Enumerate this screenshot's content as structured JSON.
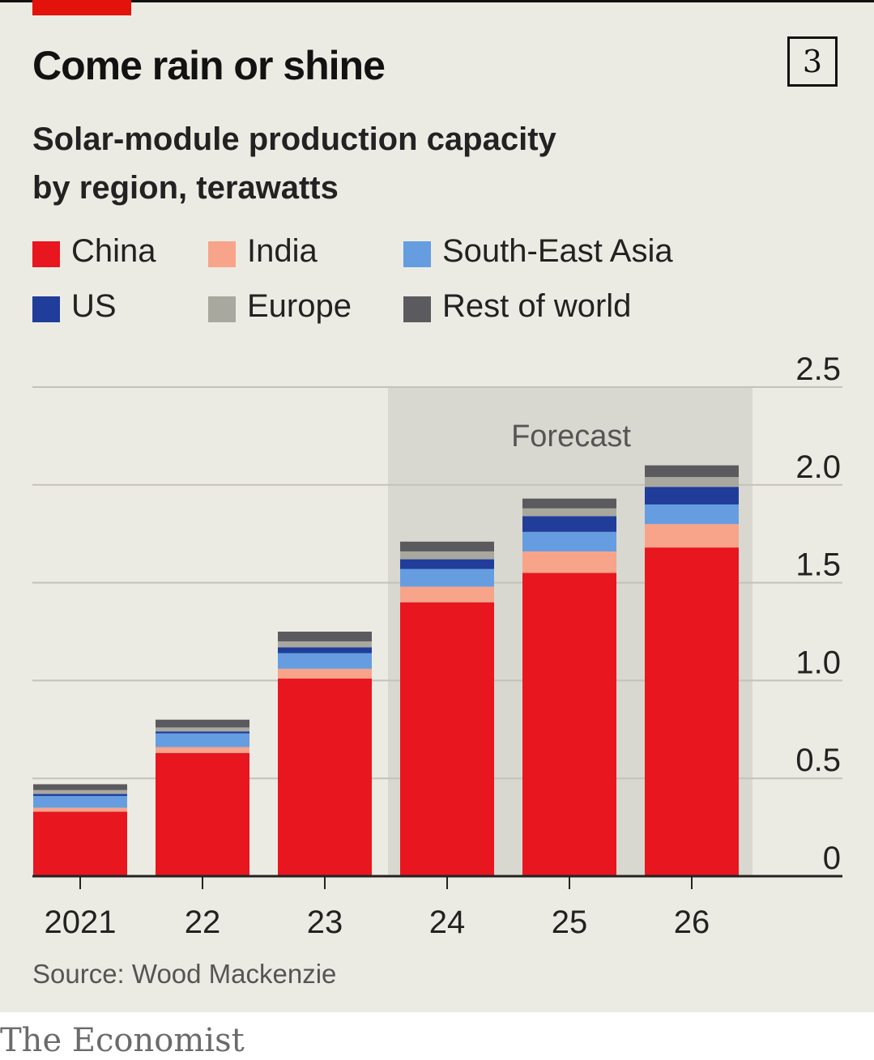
{
  "header": {
    "title": "Come rain or shine",
    "chart_number": "3"
  },
  "subtitle": {
    "line1": "Solar-module production capacity",
    "line2": "by region, terawatts"
  },
  "legend": [
    {
      "label": "China",
      "color": "#e8161f"
    },
    {
      "label": "India",
      "color": "#f7a48a"
    },
    {
      "label": "South-East Asia",
      "color": "#659de0"
    },
    {
      "label": "US",
      "color": "#1f3d99"
    },
    {
      "label": "Europe",
      "color": "#a8a89e"
    },
    {
      "label": "Rest of world",
      "color": "#5b5b5f"
    }
  ],
  "source": "Source: Wood Mackenzie",
  "brand": "The Economist",
  "chart_data": {
    "type": "bar",
    "stacked": true,
    "categories": [
      "2021",
      "22",
      "23",
      "24",
      "25",
      "26"
    ],
    "series": [
      {
        "name": "China",
        "color": "#e8161f",
        "values": [
          0.33,
          0.63,
          1.01,
          1.4,
          1.55,
          1.68
        ]
      },
      {
        "name": "India",
        "color": "#f7a48a",
        "values": [
          0.02,
          0.03,
          0.05,
          0.08,
          0.11,
          0.12
        ]
      },
      {
        "name": "South-East Asia",
        "color": "#659de0",
        "values": [
          0.06,
          0.07,
          0.08,
          0.09,
          0.1,
          0.1
        ]
      },
      {
        "name": "US",
        "color": "#1f3d99",
        "values": [
          0.01,
          0.01,
          0.03,
          0.05,
          0.08,
          0.09
        ]
      },
      {
        "name": "Europe",
        "color": "#a8a89e",
        "values": [
          0.02,
          0.02,
          0.03,
          0.04,
          0.04,
          0.05
        ]
      },
      {
        "name": "Rest of world",
        "color": "#5b5b5f",
        "values": [
          0.03,
          0.04,
          0.05,
          0.05,
          0.05,
          0.06
        ]
      }
    ],
    "yticks": [
      0,
      0.5,
      1.0,
      1.5,
      2.0,
      2.5
    ],
    "ytick_labels": [
      "0",
      "0.5",
      "1.0",
      "1.5",
      "2.0",
      "2.5"
    ],
    "ylim": [
      0,
      2.5
    ],
    "y_axis_side": "right",
    "grid": true,
    "forecast": {
      "label": "Forecast",
      "from_category": "24",
      "to_category": "26"
    }
  }
}
